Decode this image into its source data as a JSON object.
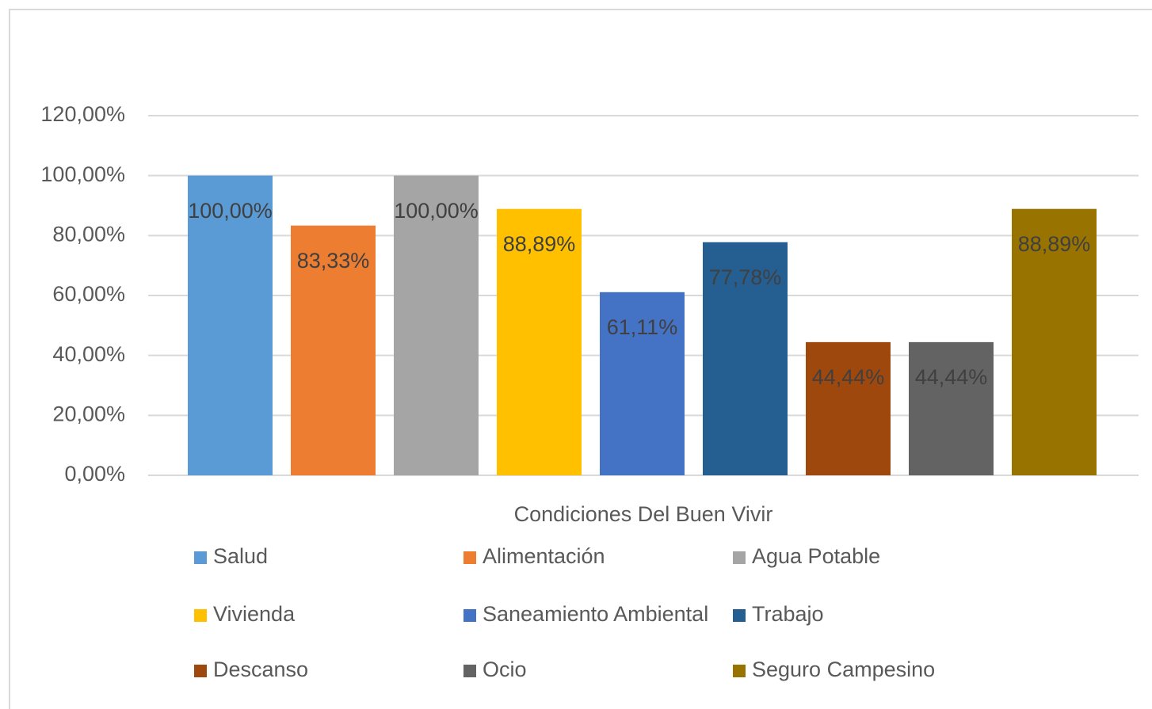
{
  "chart_data": {
    "type": "bar",
    "x_label": "Condiciones Del Buen Vivir",
    "categories": [
      "Condiciones Del Buen Vivir"
    ],
    "series": [
      {
        "name": "Salud",
        "color": "#5b9bd5",
        "values": [
          100
        ],
        "value_labels": [
          "100,00%"
        ]
      },
      {
        "name": "Alimentación",
        "color": "#ed7d31",
        "values": [
          83.33
        ],
        "value_labels": [
          "83,33%"
        ]
      },
      {
        "name": "Agua Potable",
        "color": "#a5a5a5",
        "values": [
          100
        ],
        "value_labels": [
          "100,00%"
        ]
      },
      {
        "name": "Vivienda",
        "color": "#ffc000",
        "values": [
          88.89
        ],
        "value_labels": [
          "88,89%"
        ]
      },
      {
        "name": "Saneamiento Ambiental",
        "color": "#4472c4",
        "values": [
          61.11
        ],
        "value_labels": [
          "61,11%"
        ]
      },
      {
        "name": "Trabajo",
        "color": "#255e91",
        "values": [
          77.78
        ],
        "value_labels": [
          "77,78%"
        ]
      },
      {
        "name": "Descanso",
        "color": "#9e480e",
        "values": [
          44.44
        ],
        "value_labels": [
          "44,44%"
        ]
      },
      {
        "name": "Ocio",
        "color": "#636363",
        "values": [
          44.44
        ],
        "value_labels": [
          "44,44%"
        ]
      },
      {
        "name": "Seguro Campesino",
        "color": "#997300",
        "values": [
          88.89
        ],
        "value_labels": [
          "88,89%"
        ]
      }
    ],
    "ylim": [
      0,
      120
    ],
    "yticks": [
      {
        "value": 0,
        "label": "0,00%"
      },
      {
        "value": 20,
        "label": "20,00%"
      },
      {
        "value": 40,
        "label": "40,00%"
      },
      {
        "value": 60,
        "label": "60,00%"
      },
      {
        "value": 80,
        "label": "80,00%"
      },
      {
        "value": 100,
        "label": "100,00%"
      },
      {
        "value": 120,
        "label": "120,00%"
      }
    ],
    "grid": true,
    "legend": "bottom"
  }
}
